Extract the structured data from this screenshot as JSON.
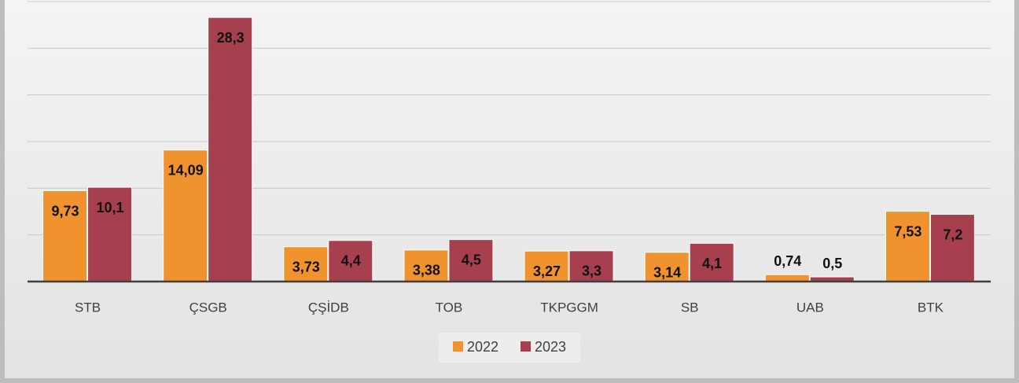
{
  "chart_data": {
    "type": "bar",
    "categories": [
      "STB",
      "ÇSGB",
      "ÇŞİDB",
      "TOB",
      "TKPGGM",
      "SB",
      "UAB",
      "BTK"
    ],
    "series": [
      {
        "name": "2022",
        "color": "#f0922e",
        "values": [
          9.73,
          14.09,
          3.73,
          3.38,
          3.27,
          3.14,
          0.74,
          7.53
        ],
        "value_labels": [
          "9,73",
          "14,09",
          "3,73",
          "3,38",
          "3,27",
          "3,14",
          "0,74",
          "7,53"
        ]
      },
      {
        "name": "2023",
        "color": "#a6404f",
        "values": [
          10.1,
          28.3,
          4.4,
          4.5,
          3.3,
          4.1,
          0.5,
          7.2
        ],
        "value_labels": [
          "10,1",
          "28,3",
          "4,4",
          "4,5",
          "3,3",
          "4,1",
          "0,5",
          "7,2"
        ]
      }
    ],
    "ylim": [
      0,
      30
    ],
    "yticks": [
      0,
      5,
      10,
      15,
      20,
      25,
      30
    ],
    "grid": true,
    "legend": "bottom"
  }
}
